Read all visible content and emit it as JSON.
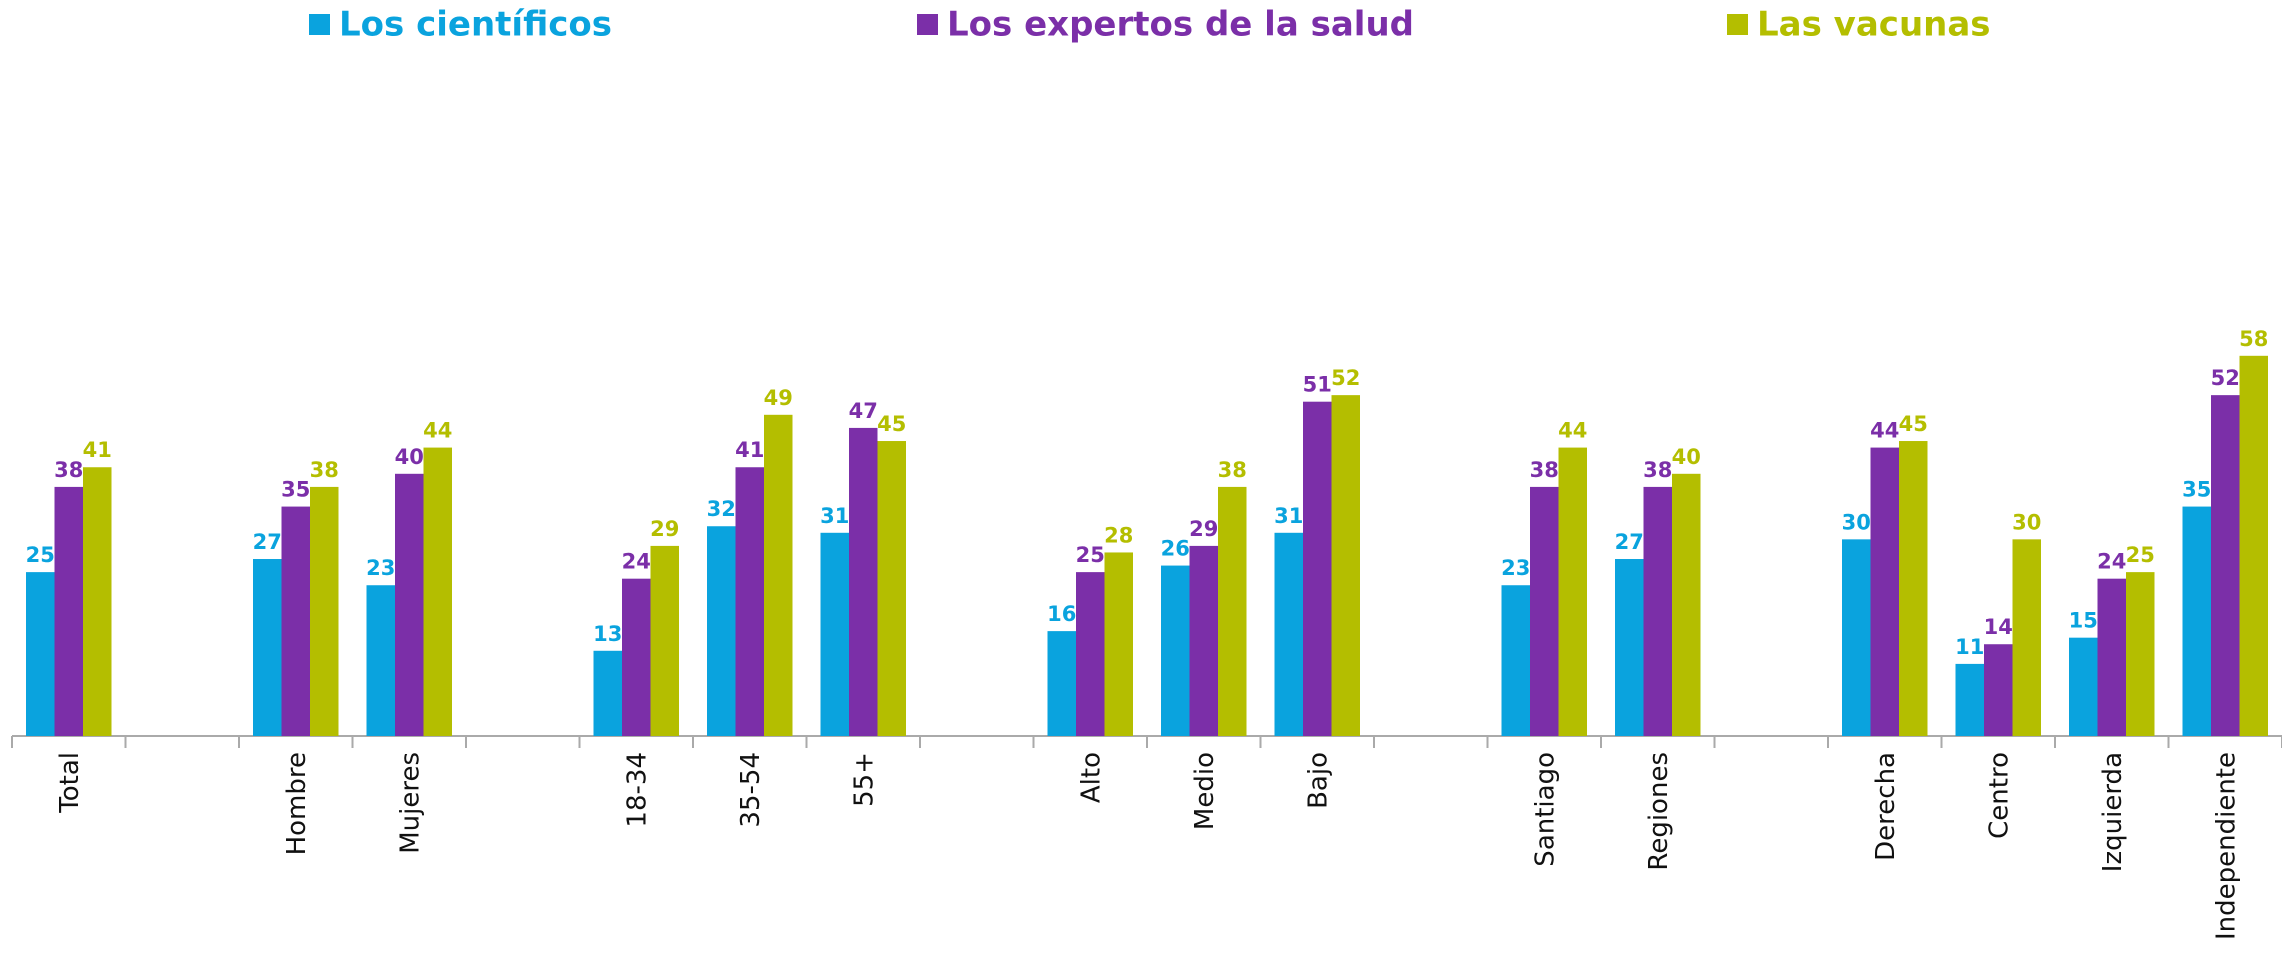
{
  "chart_data": {
    "type": "bar",
    "categories": [
      "Total",
      null,
      "Hombre",
      "Mujeres",
      null,
      "18-34",
      "35-54",
      "55+",
      null,
      "Alto",
      "Medio",
      "Bajo",
      null,
      "Santiago",
      "Regiones",
      null,
      "Derecha",
      "Centro",
      "Izquierda",
      "Independiente"
    ],
    "series": [
      {
        "name": "Los científicos",
        "color": "#0aa3de",
        "values": [
          25,
          null,
          27,
          23,
          null,
          13,
          32,
          31,
          null,
          16,
          26,
          31,
          null,
          23,
          27,
          null,
          30,
          11,
          15,
          35
        ]
      },
      {
        "name": "Los expertos de la salud",
        "color": "#7b2fa8",
        "values": [
          38,
          null,
          35,
          40,
          null,
          24,
          41,
          47,
          null,
          25,
          29,
          51,
          null,
          38,
          38,
          null,
          44,
          14,
          24,
          52
        ]
      },
      {
        "name": "Las vacunas",
        "color": "#b4be00",
        "values": [
          41,
          null,
          38,
          44,
          null,
          29,
          49,
          45,
          null,
          28,
          38,
          52,
          null,
          44,
          40,
          null,
          45,
          30,
          25,
          58
        ]
      }
    ],
    "legend": "top"
  }
}
